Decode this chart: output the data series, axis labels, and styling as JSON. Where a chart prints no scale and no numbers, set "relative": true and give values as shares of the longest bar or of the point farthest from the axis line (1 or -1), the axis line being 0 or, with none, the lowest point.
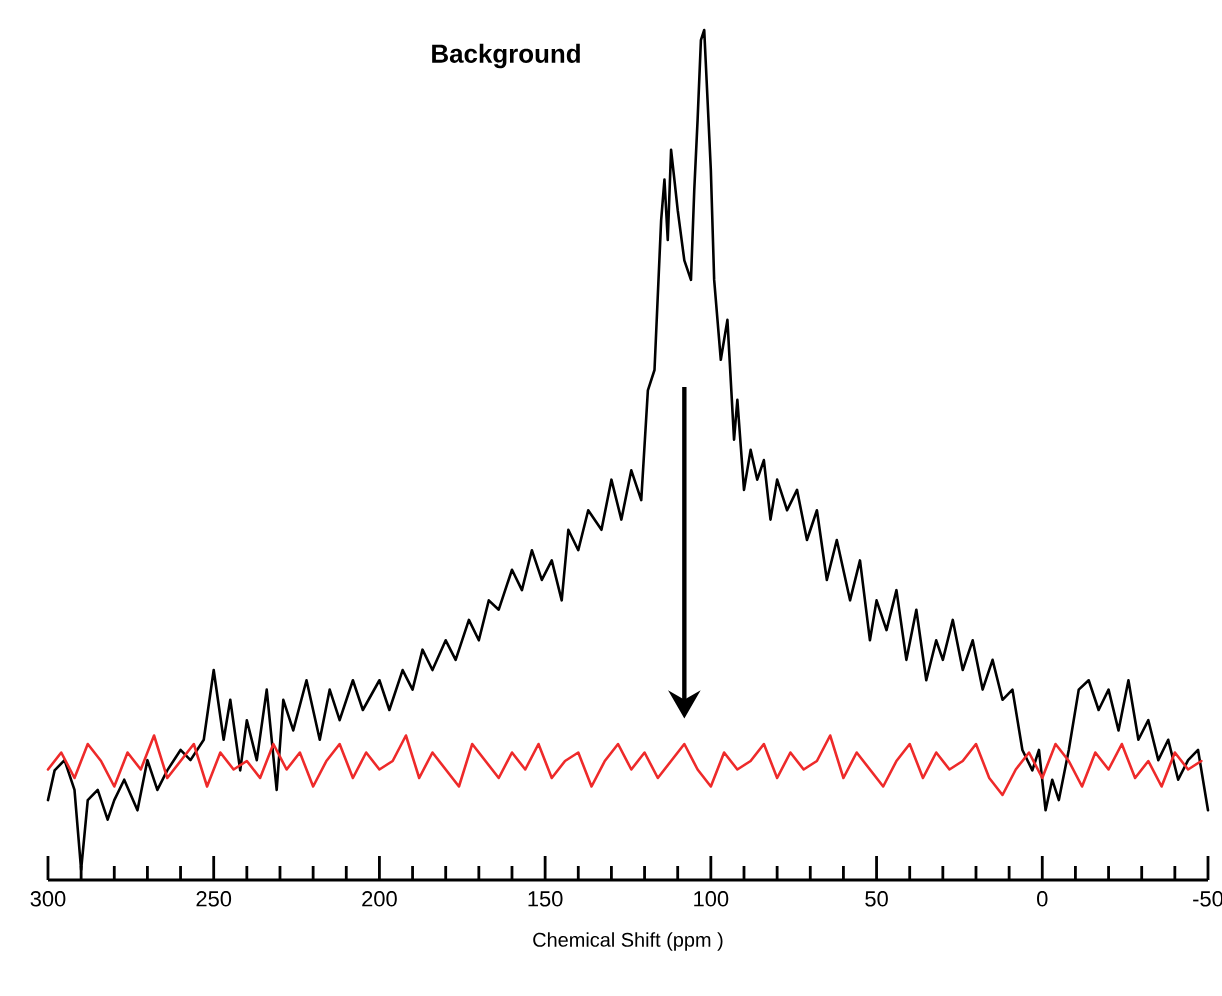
{
  "chart_data": {
    "type": "line",
    "relative": true,
    "xlabel": "Chemical Shift (ppm   )",
    "xlim": [
      300,
      -50
    ],
    "xticks": [
      300,
      250,
      200,
      150,
      100,
      50,
      0,
      -50
    ],
    "annotations": [
      "Background"
    ],
    "series": [
      {
        "color": "#000000",
        "x": [
          300,
          298,
          295,
          292,
          290,
          288,
          285,
          282,
          280,
          277,
          273,
          270,
          267,
          264,
          260,
          257,
          253,
          250,
          247,
          245,
          242,
          240,
          237,
          234,
          231,
          229,
          226,
          222,
          218,
          215,
          212,
          208,
          205,
          200,
          197,
          193,
          190,
          187,
          184,
          180,
          177,
          173,
          170,
          167,
          164,
          160,
          157,
          154,
          151,
          148,
          145,
          143,
          140,
          137,
          133,
          130,
          127,
          124,
          121,
          119,
          117,
          115,
          114,
          113,
          112,
          111,
          110,
          108,
          106,
          105,
          104,
          103,
          102,
          101,
          100,
          99,
          97,
          95,
          93,
          92,
          90,
          88,
          86,
          84,
          82,
          80,
          77,
          74,
          71,
          68,
          65,
          62,
          58,
          55,
          52,
          50,
          47,
          44,
          41,
          38,
          35,
          32,
          30,
          27,
          24,
          21,
          18,
          15,
          12,
          9,
          6,
          3,
          1,
          -1,
          -3,
          -5,
          -8,
          -11,
          -14,
          -17,
          -20,
          -23,
          -26,
          -29,
          -32,
          -35,
          -38,
          -41,
          -44,
          -47,
          -50
        ],
        "values": [
          0.094,
          0.129,
          0.141,
          0.106,
          0.012,
          0.094,
          0.106,
          0.071,
          0.094,
          0.118,
          0.082,
          0.141,
          0.106,
          0.129,
          0.153,
          0.141,
          0.165,
          0.247,
          0.165,
          0.212,
          0.129,
          0.188,
          0.141,
          0.224,
          0.106,
          0.212,
          0.176,
          0.235,
          0.165,
          0.224,
          0.188,
          0.235,
          0.2,
          0.235,
          0.2,
          0.247,
          0.224,
          0.271,
          0.247,
          0.282,
          0.259,
          0.306,
          0.282,
          0.329,
          0.318,
          0.365,
          0.341,
          0.388,
          0.353,
          0.376,
          0.329,
          0.412,
          0.388,
          0.435,
          0.412,
          0.471,
          0.424,
          0.482,
          0.447,
          0.576,
          0.6,
          0.776,
          0.824,
          0.753,
          0.859,
          0.824,
          0.788,
          0.729,
          0.706,
          0.812,
          0.894,
          0.988,
          1,
          0.918,
          0.835,
          0.706,
          0.612,
          0.659,
          0.518,
          0.565,
          0.459,
          0.506,
          0.471,
          0.494,
          0.424,
          0.471,
          0.435,
          0.459,
          0.4,
          0.435,
          0.353,
          0.4,
          0.329,
          0.376,
          0.282,
          0.329,
          0.294,
          0.341,
          0.259,
          0.318,
          0.235,
          0.282,
          0.259,
          0.306,
          0.247,
          0.282,
          0.224,
          0.259,
          0.212,
          0.224,
          0.153,
          0.129,
          0.153,
          0.082,
          0.118,
          0.094,
          0.153,
          0.224,
          0.235,
          0.2,
          0.224,
          0.176,
          0.235,
          0.165,
          0.188,
          0.141,
          0.165,
          0.118,
          0.141,
          0.153,
          0.082
        ]
      },
      {
        "color": "#ee2a2a",
        "x": [
          300,
          296,
          292,
          288,
          284,
          280,
          276,
          272,
          268,
          264,
          260,
          256,
          252,
          248,
          244,
          240,
          236,
          232,
          228,
          224,
          220,
          216,
          212,
          208,
          204,
          200,
          196,
          192,
          188,
          184,
          180,
          176,
          172,
          168,
          164,
          160,
          156,
          152,
          148,
          144,
          140,
          136,
          132,
          128,
          124,
          120,
          116,
          112,
          108,
          104,
          100,
          96,
          92,
          88,
          84,
          80,
          76,
          72,
          68,
          64,
          60,
          56,
          52,
          48,
          44,
          40,
          36,
          32,
          28,
          24,
          20,
          16,
          12,
          8,
          4,
          0,
          -4,
          -8,
          -12,
          -16,
          -20,
          -24,
          -28,
          -32,
          -36,
          -40,
          -44,
          -48
        ],
        "values": [
          0.13,
          0.15,
          0.12,
          0.16,
          0.14,
          0.11,
          0.15,
          0.13,
          0.17,
          0.12,
          0.14,
          0.16,
          0.11,
          0.15,
          0.13,
          0.14,
          0.12,
          0.16,
          0.13,
          0.15,
          0.11,
          0.14,
          0.16,
          0.12,
          0.15,
          0.13,
          0.14,
          0.17,
          0.12,
          0.15,
          0.13,
          0.11,
          0.16,
          0.14,
          0.12,
          0.15,
          0.13,
          0.16,
          0.12,
          0.14,
          0.15,
          0.11,
          0.14,
          0.16,
          0.13,
          0.15,
          0.12,
          0.14,
          0.16,
          0.13,
          0.11,
          0.15,
          0.13,
          0.14,
          0.16,
          0.12,
          0.15,
          0.13,
          0.14,
          0.17,
          0.12,
          0.15,
          0.13,
          0.11,
          0.14,
          0.16,
          0.12,
          0.15,
          0.13,
          0.14,
          0.16,
          0.12,
          0.1,
          0.13,
          0.15,
          0.12,
          0.16,
          0.14,
          0.11,
          0.15,
          0.13,
          0.16,
          0.12,
          0.14,
          0.11,
          0.15,
          0.13,
          0.14
        ]
      }
    ]
  }
}
